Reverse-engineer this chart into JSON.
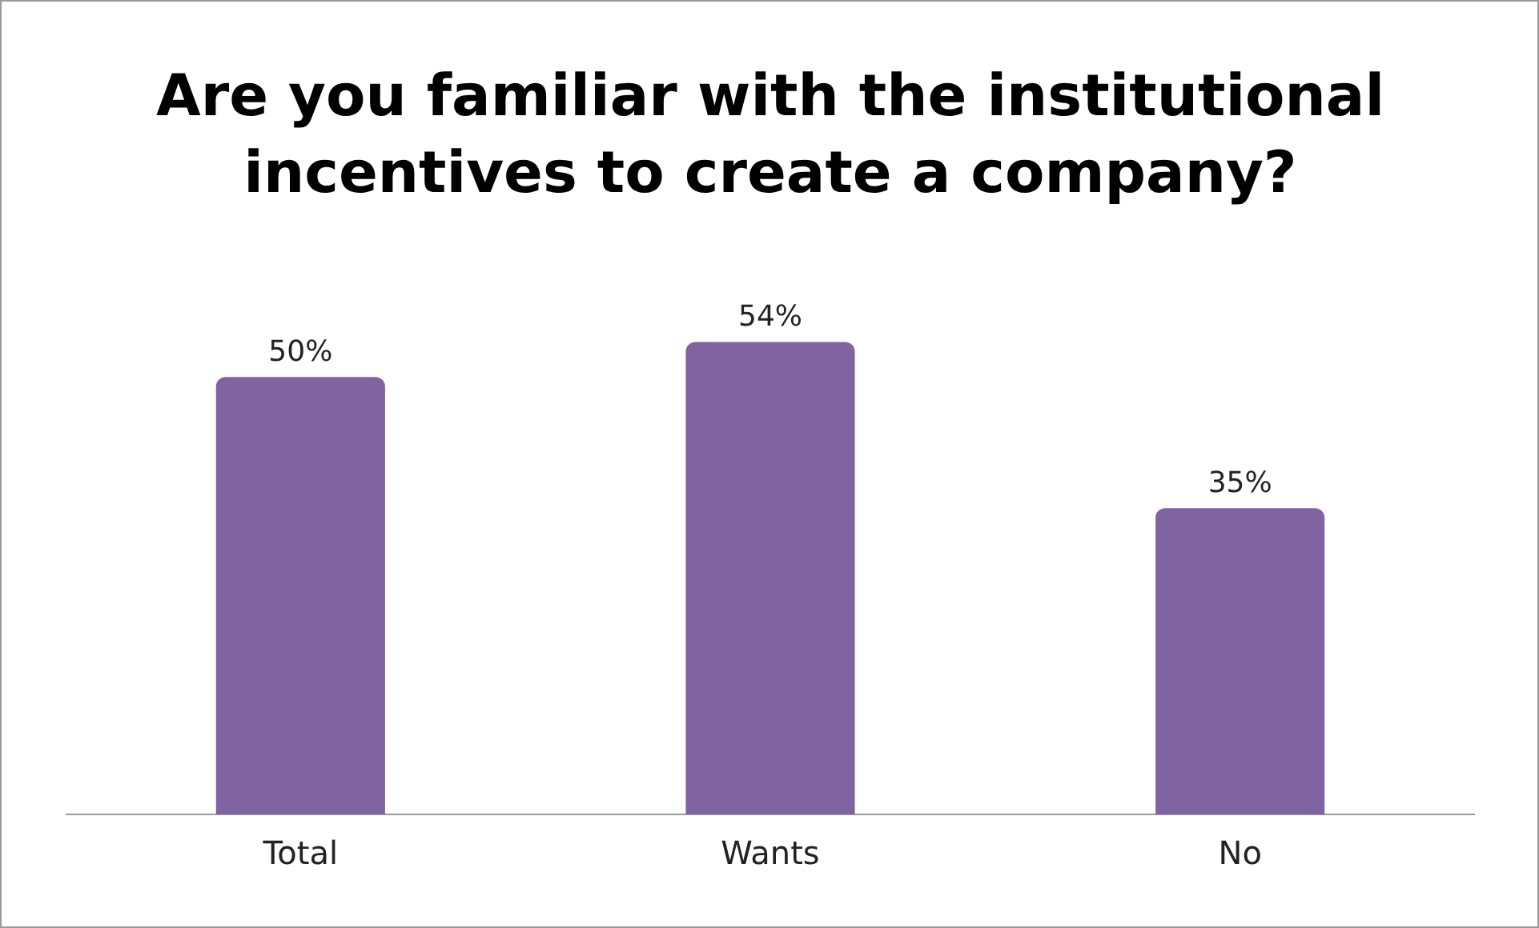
{
  "chart_data": {
    "type": "bar",
    "title": "Are you familiar with the institutional incentives to create a company?",
    "categories": [
      "Total",
      "Wants",
      "No"
    ],
    "values": [
      50,
      54,
      35
    ],
    "value_labels": [
      "50%",
      "54%",
      "35%"
    ],
    "color": "#8064a2",
    "grid": false,
    "legend": false
  }
}
